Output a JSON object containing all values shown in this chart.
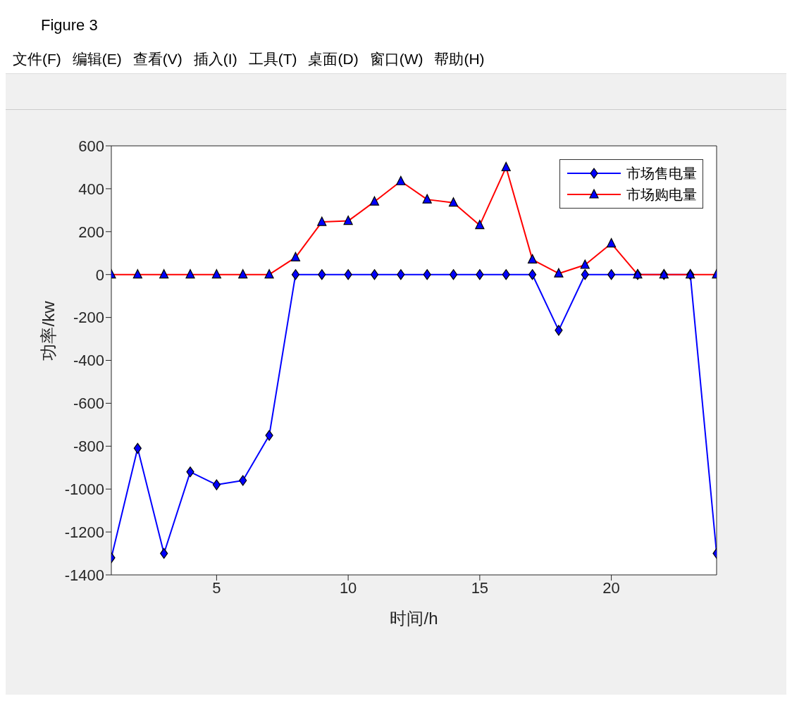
{
  "chart_data": {
    "type": "line",
    "xlabel": "时间/h",
    "ylabel": "功率/kw",
    "annotations": [
      "Figure 3",
      "文件(F)",
      "编辑(E)",
      "查看(V)",
      "插入(I)",
      "工具(T)",
      "桌面(D)",
      "窗口(W)",
      "帮助(H)"
    ],
    "x": [
      1,
      2,
      3,
      4,
      5,
      6,
      7,
      8,
      9,
      10,
      11,
      12,
      13,
      14,
      15,
      16,
      17,
      18,
      19,
      20,
      21,
      22,
      23,
      24
    ],
    "series": [
      {
        "name": "市场售电量",
        "color": "#0000ff",
        "marker": "diamond",
        "values": [
          -1320,
          -810,
          -1300,
          -920,
          -980,
          -960,
          -750,
          0,
          0,
          0,
          0,
          0,
          0,
          0,
          0,
          0,
          0,
          -260,
          0,
          0,
          0,
          0,
          0,
          -1300
        ]
      },
      {
        "name": "市场购电量",
        "color": "#ff0000",
        "marker": "triangle",
        "values": [
          0,
          0,
          0,
          0,
          0,
          0,
          0,
          80,
          245,
          250,
          340,
          435,
          350,
          335,
          230,
          500,
          70,
          5,
          45,
          145,
          0,
          0,
          0,
          0
        ]
      }
    ],
    "xlim": [
      1,
      24
    ],
    "xticks": [
      5,
      10,
      15,
      20
    ],
    "ylim": [
      -1400,
      600
    ],
    "yticks": [
      -1400,
      -1200,
      -1000,
      -800,
      -600,
      -400,
      -200,
      0,
      200,
      400,
      600
    ],
    "grid": false,
    "legend": "top right",
    "line_style": "solid"
  }
}
